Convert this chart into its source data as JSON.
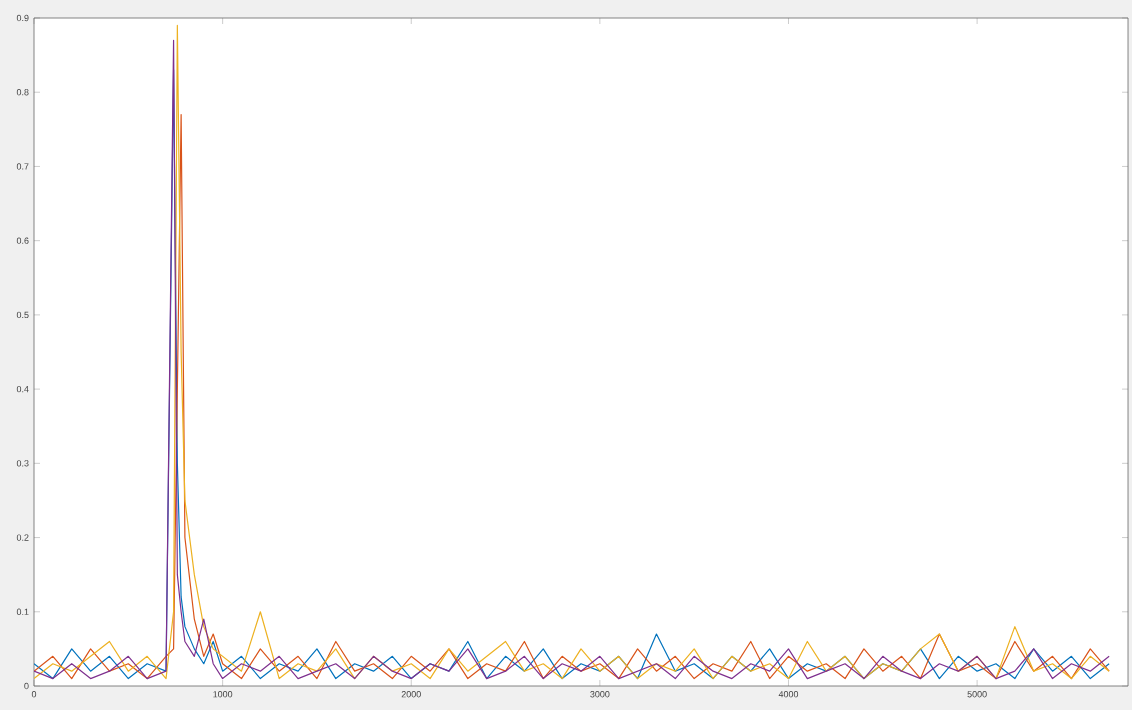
{
  "chart_data": {
    "type": "line",
    "x": [
      0,
      100,
      200,
      300,
      400,
      500,
      600,
      700,
      740,
      760,
      780,
      800,
      850,
      900,
      950,
      1000,
      1100,
      1200,
      1300,
      1400,
      1500,
      1600,
      1700,
      1800,
      1900,
      2000,
      2100,
      2200,
      2300,
      2400,
      2500,
      2600,
      2700,
      2800,
      2900,
      3000,
      3100,
      3200,
      3300,
      3400,
      3500,
      3600,
      3700,
      3800,
      3900,
      4000,
      4100,
      4200,
      4300,
      4400,
      4500,
      4600,
      4700,
      4800,
      4900,
      5000,
      5100,
      5200,
      5300,
      5400,
      5500,
      5600,
      5700
    ],
    "series": [
      {
        "color": "#0072bd",
        "values": [
          0.03,
          0.01,
          0.05,
          0.02,
          0.04,
          0.01,
          0.03,
          0.02,
          0.83,
          0.3,
          0.12,
          0.08,
          0.05,
          0.03,
          0.06,
          0.02,
          0.04,
          0.01,
          0.03,
          0.02,
          0.05,
          0.01,
          0.03,
          0.02,
          0.04,
          0.01,
          0.03,
          0.02,
          0.06,
          0.01,
          0.04,
          0.02,
          0.05,
          0.01,
          0.03,
          0.02,
          0.04,
          0.01,
          0.07,
          0.02,
          0.03,
          0.01,
          0.04,
          0.02,
          0.05,
          0.01,
          0.03,
          0.02,
          0.04,
          0.01,
          0.03,
          0.02,
          0.05,
          0.01,
          0.04,
          0.02,
          0.03,
          0.01,
          0.05,
          0.02,
          0.04,
          0.01,
          0.03
        ]
      },
      {
        "color": "#d95319",
        "values": [
          0.02,
          0.04,
          0.01,
          0.05,
          0.02,
          0.03,
          0.01,
          0.04,
          0.05,
          0.4,
          0.77,
          0.2,
          0.09,
          0.04,
          0.07,
          0.03,
          0.01,
          0.05,
          0.02,
          0.04,
          0.01,
          0.06,
          0.02,
          0.03,
          0.01,
          0.04,
          0.02,
          0.05,
          0.01,
          0.03,
          0.02,
          0.06,
          0.01,
          0.04,
          0.02,
          0.03,
          0.01,
          0.05,
          0.02,
          0.04,
          0.01,
          0.03,
          0.02,
          0.06,
          0.01,
          0.04,
          0.02,
          0.03,
          0.01,
          0.05,
          0.02,
          0.04,
          0.01,
          0.07,
          0.02,
          0.03,
          0.01,
          0.06,
          0.02,
          0.04,
          0.01,
          0.05,
          0.02
        ]
      },
      {
        "color": "#edb120",
        "values": [
          0.01,
          0.03,
          0.02,
          0.04,
          0.06,
          0.02,
          0.04,
          0.01,
          0.1,
          0.89,
          0.45,
          0.25,
          0.15,
          0.08,
          0.05,
          0.04,
          0.02,
          0.1,
          0.01,
          0.03,
          0.02,
          0.05,
          0.01,
          0.04,
          0.02,
          0.03,
          0.01,
          0.05,
          0.02,
          0.04,
          0.06,
          0.02,
          0.03,
          0.01,
          0.05,
          0.02,
          0.04,
          0.01,
          0.03,
          0.02,
          0.05,
          0.01,
          0.04,
          0.02,
          0.03,
          0.01,
          0.06,
          0.02,
          0.04,
          0.01,
          0.03,
          0.02,
          0.05,
          0.07,
          0.02,
          0.04,
          0.01,
          0.08,
          0.02,
          0.03,
          0.01,
          0.04,
          0.02
        ]
      },
      {
        "color": "#7e2f8e",
        "values": [
          0.02,
          0.01,
          0.03,
          0.01,
          0.02,
          0.04,
          0.01,
          0.02,
          0.87,
          0.15,
          0.1,
          0.06,
          0.04,
          0.09,
          0.03,
          0.01,
          0.03,
          0.02,
          0.04,
          0.01,
          0.02,
          0.03,
          0.01,
          0.04,
          0.02,
          0.01,
          0.03,
          0.02,
          0.05,
          0.01,
          0.02,
          0.04,
          0.01,
          0.03,
          0.02,
          0.04,
          0.01,
          0.02,
          0.03,
          0.01,
          0.04,
          0.02,
          0.01,
          0.03,
          0.02,
          0.05,
          0.01,
          0.02,
          0.03,
          0.01,
          0.04,
          0.02,
          0.01,
          0.03,
          0.02,
          0.04,
          0.01,
          0.02,
          0.05,
          0.01,
          0.03,
          0.02,
          0.04
        ]
      }
    ],
    "xlim": [
      0,
      5800
    ],
    "ylim": [
      0,
      0.9
    ],
    "xticks": [
      0,
      1000,
      2000,
      3000,
      4000,
      5000
    ],
    "yticks": [
      0,
      0.1,
      0.2,
      0.3,
      0.4,
      0.5,
      0.6,
      0.7,
      0.8,
      0.9
    ],
    "grid": false
  }
}
